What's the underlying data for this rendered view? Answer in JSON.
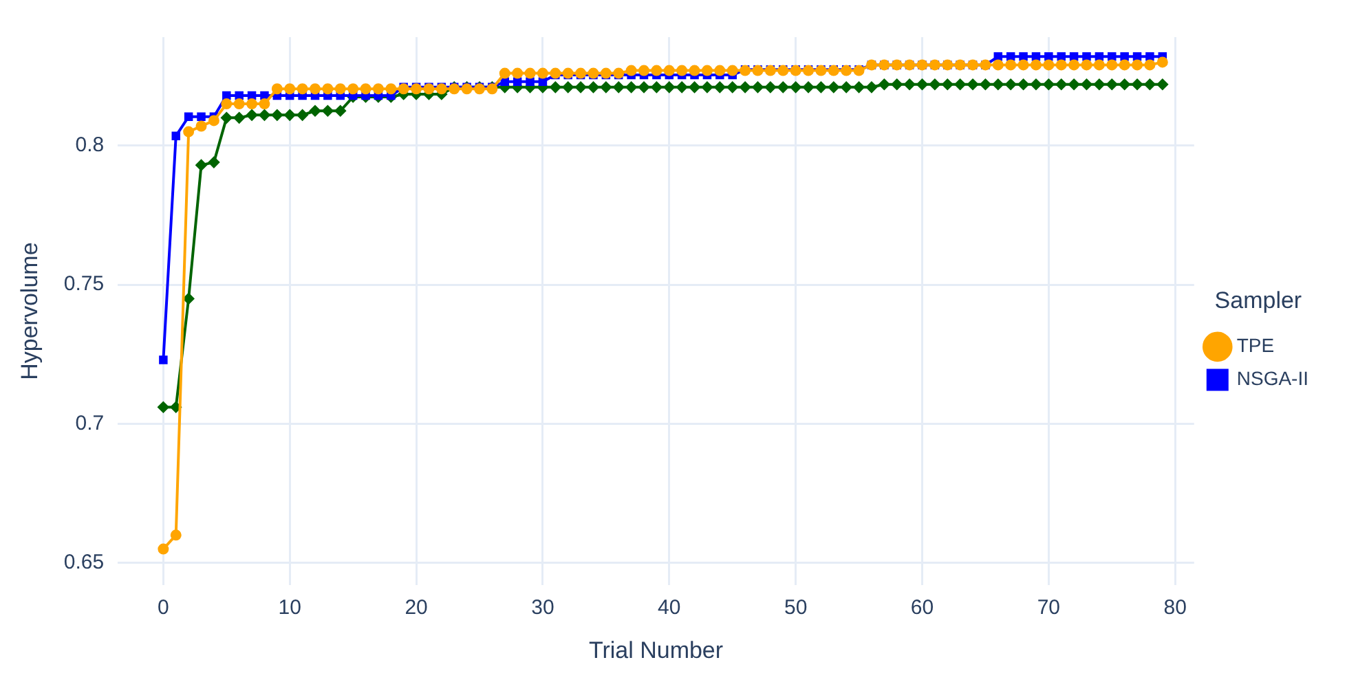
{
  "chart_data": {
    "type": "line",
    "xlabel": "Trial Number",
    "ylabel": "Hypervolume",
    "legend_title": "Sampler",
    "legend": "right",
    "grid": true,
    "x": [
      0,
      1,
      2,
      3,
      4,
      5,
      6,
      7,
      8,
      9,
      10,
      11,
      12,
      13,
      14,
      15,
      16,
      17,
      18,
      19,
      20,
      21,
      22,
      23,
      24,
      25,
      26,
      27,
      28,
      29,
      30,
      31,
      32,
      33,
      34,
      35,
      36,
      37,
      38,
      39,
      40,
      41,
      42,
      43,
      44,
      45,
      46,
      47,
      48,
      49,
      50,
      51,
      52,
      53,
      54,
      55,
      56,
      57,
      58,
      59,
      60,
      61,
      62,
      63,
      64,
      65,
      66,
      67,
      68,
      69,
      70,
      71,
      72,
      73,
      74,
      75,
      76,
      77,
      78,
      79
    ],
    "xlim": [
      -3.6,
      81.5
    ],
    "xticks": [
      0,
      10,
      20,
      30,
      40,
      50,
      60,
      70,
      80
    ],
    "ylim": [
      0.642,
      0.839
    ],
    "yticks": [
      0.65,
      0.7,
      0.75,
      0.8
    ],
    "series": [
      {
        "name": "TPE",
        "color": "#ffa500",
        "marker": "circle",
        "values": [
          0.655,
          0.66,
          0.805,
          0.807,
          0.809,
          0.815,
          0.815,
          0.815,
          0.815,
          0.8204,
          0.8204,
          0.8204,
          0.8204,
          0.8204,
          0.8204,
          0.8204,
          0.8204,
          0.8204,
          0.8204,
          0.8204,
          0.8204,
          0.8204,
          0.8204,
          0.8204,
          0.8204,
          0.8204,
          0.8204,
          0.826,
          0.826,
          0.826,
          0.826,
          0.826,
          0.826,
          0.826,
          0.826,
          0.826,
          0.826,
          0.827,
          0.827,
          0.827,
          0.827,
          0.827,
          0.827,
          0.827,
          0.827,
          0.827,
          0.827,
          0.827,
          0.827,
          0.827,
          0.827,
          0.827,
          0.827,
          0.827,
          0.827,
          0.827,
          0.829,
          0.829,
          0.829,
          0.829,
          0.829,
          0.829,
          0.829,
          0.829,
          0.829,
          0.829,
          0.829,
          0.829,
          0.829,
          0.829,
          0.829,
          0.829,
          0.829,
          0.829,
          0.829,
          0.829,
          0.829,
          0.829,
          0.829,
          0.83
        ]
      },
      {
        "name": "NSGA-II",
        "color": "#0000ff",
        "marker": "square",
        "values": [
          0.723,
          0.8035,
          0.8104,
          0.8104,
          0.8104,
          0.818,
          0.818,
          0.818,
          0.818,
          0.818,
          0.818,
          0.818,
          0.818,
          0.818,
          0.818,
          0.818,
          0.818,
          0.818,
          0.818,
          0.821,
          0.821,
          0.821,
          0.821,
          0.821,
          0.821,
          0.821,
          0.821,
          0.823,
          0.823,
          0.823,
          0.823,
          0.8254,
          0.8254,
          0.8254,
          0.8254,
          0.8254,
          0.8254,
          0.8254,
          0.8254,
          0.8254,
          0.8254,
          0.8254,
          0.8254,
          0.8254,
          0.8254,
          0.8254,
          0.8273,
          0.8273,
          0.8273,
          0.8273,
          0.8273,
          0.8273,
          0.8273,
          0.8273,
          0.8273,
          0.8273,
          0.829,
          0.829,
          0.829,
          0.829,
          0.829,
          0.829,
          0.829,
          0.829,
          0.829,
          0.829,
          0.832,
          0.832,
          0.832,
          0.832,
          0.832,
          0.832,
          0.832,
          0.832,
          0.832,
          0.832,
          0.832,
          0.832,
          0.832,
          0.832
        ]
      },
      {
        "color": "#006400",
        "marker": "diamond",
        "values": [
          0.706,
          0.706,
          0.745,
          0.793,
          0.794,
          0.81,
          0.81,
          0.811,
          0.811,
          0.811,
          0.811,
          0.811,
          0.8125,
          0.8125,
          0.8125,
          0.8175,
          0.8175,
          0.8175,
          0.8175,
          0.8185,
          0.8185,
          0.8185,
          0.8185,
          0.821,
          0.821,
          0.821,
          0.821,
          0.821,
          0.821,
          0.821,
          0.821,
          0.821,
          0.821,
          0.821,
          0.821,
          0.821,
          0.821,
          0.821,
          0.821,
          0.821,
          0.821,
          0.821,
          0.821,
          0.821,
          0.821,
          0.821,
          0.821,
          0.821,
          0.821,
          0.821,
          0.821,
          0.821,
          0.821,
          0.821,
          0.821,
          0.821,
          0.821,
          0.822,
          0.822,
          0.822,
          0.822,
          0.822,
          0.822,
          0.822,
          0.822,
          0.822,
          0.822,
          0.822,
          0.822,
          0.822,
          0.822,
          0.822,
          0.822,
          0.822,
          0.822,
          0.822,
          0.822,
          0.822,
          0.822,
          0.822
        ]
      }
    ]
  }
}
